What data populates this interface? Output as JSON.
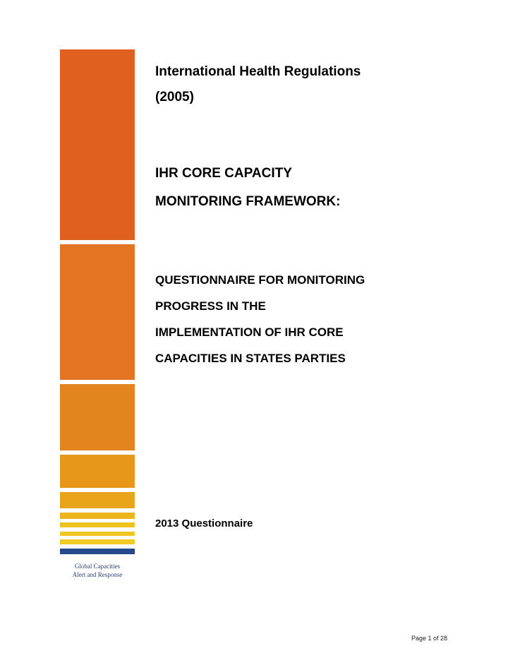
{
  "document": {
    "title_lines": [
      "International Health Regulations",
      "(2005)"
    ],
    "framework_lines": [
      "IHR CORE CAPACITY",
      "MONITORING FRAMEWORK:"
    ],
    "questionnaire_lines": [
      "QUESTIONNAIRE FOR MONITORING",
      "PROGRESS IN THE",
      "IMPLEMENTATION OF IHR CORE",
      "CAPACITIES IN STATES PARTIES"
    ],
    "year_label": "2013 Questionnaire",
    "org_label_lines": [
      "Global Capacities",
      "Alert and Response"
    ],
    "page_number": "Page 1 of 28"
  },
  "colors": {
    "bar_orange_dark": "#e0611f",
    "bar_orange": "#e27422",
    "bar_amber": "#e3851f",
    "bar_yellow": "#f0c61f",
    "bar_navy": "#254a8c",
    "org_text": "#2c3f73"
  }
}
